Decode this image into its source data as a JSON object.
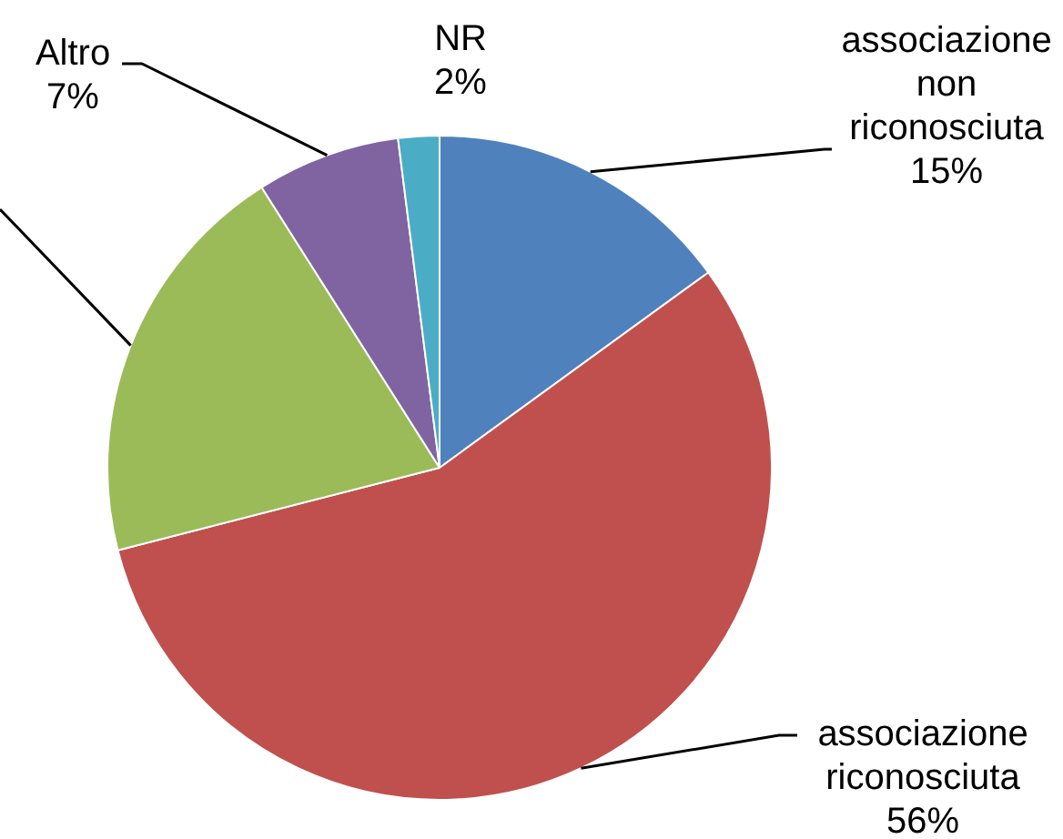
{
  "chart_data": {
    "type": "pie",
    "categories": [
      "associazione non riconosciuta",
      "associazione riconosciuta",
      null,
      "Altro",
      "NR"
    ],
    "values": [
      15,
      56,
      20,
      7,
      2
    ],
    "colors": [
      "#4f81bd",
      "#c0504d",
      "#9bbb59",
      "#8064a2",
      "#4bacc6"
    ],
    "value_labels": [
      "15%",
      "56%",
      null,
      "7%",
      "2%"
    ],
    "legend": false
  }
}
